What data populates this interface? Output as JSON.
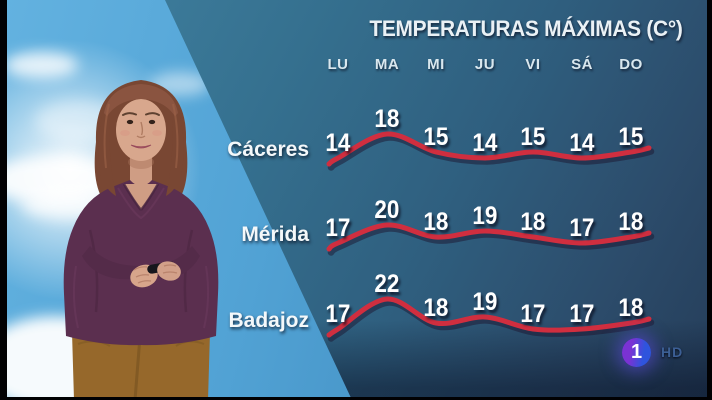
{
  "chart_data": {
    "type": "line",
    "title": "TEMPERATURAS MÁXIMAS (C°)",
    "categories": [
      "LU",
      "MA",
      "MI",
      "JU",
      "VI",
      "SÁ",
      "DO"
    ],
    "series": [
      {
        "name": "Cáceres",
        "values": [
          14,
          18,
          15,
          14,
          15,
          14,
          15
        ]
      },
      {
        "name": "Mérida",
        "values": [
          17,
          20,
          18,
          19,
          18,
          17,
          18
        ]
      },
      {
        "name": "Badajoz",
        "values": [
          17,
          22,
          18,
          19,
          17,
          17,
          18
        ]
      }
    ],
    "line_color": "#d02e3f",
    "line_shadow_color": "rgba(28,22,48,0.5)",
    "label_color": "#ffffff",
    "legend_position": "row-labels-left",
    "grid": false,
    "xlabel": "",
    "ylabel": ""
  },
  "channel_bug": {
    "channel": "1",
    "quality": "HD"
  },
  "colors": {
    "panel_teal_top": "#3f7f9e",
    "panel_navy_bottom": "#253d59",
    "sky_blue": "#52a3d5",
    "logo_purple": "#7a32d4",
    "logo_blue": "#2f54dd"
  }
}
